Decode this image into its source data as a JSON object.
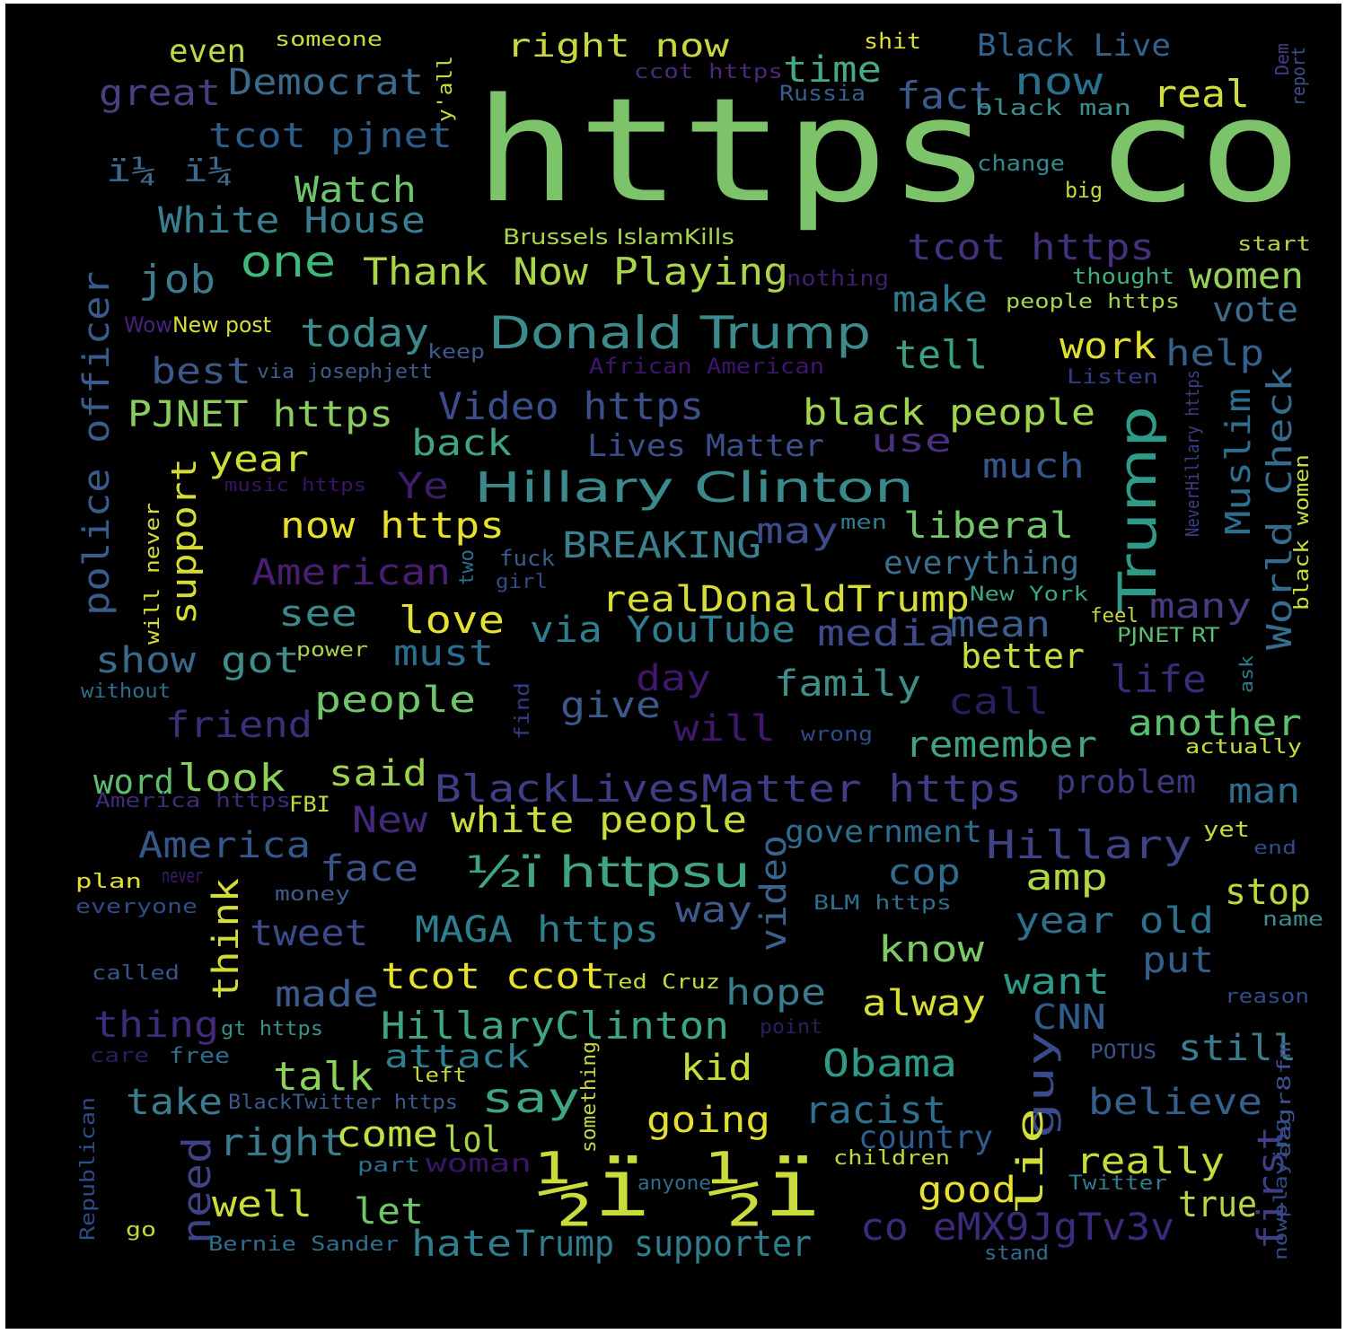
{
  "words": [
    {
      "t": "https co",
      "c": "#7cc36a"
    },
    {
      "t": "½ï ½ï",
      "c": "#c9dc3c"
    },
    {
      "t": "Donald Trump",
      "c": "#3d8a8c"
    },
    {
      "t": "Hillary Clinton",
      "c": "#3a8a8b"
    },
    {
      "t": "Trump",
      "c": "#2f9a87"
    },
    {
      "t": "½ï httpsu",
      "c": "#3fa57f"
    },
    {
      "t": "right now",
      "c": "#c8d640"
    },
    {
      "t": "Thank Now Playing",
      "c": "#aad44a"
    },
    {
      "t": "Democrat",
      "c": "#3a6a8c"
    },
    {
      "t": "great",
      "c": "#4a3d80"
    },
    {
      "t": "tcot pjnet",
      "c": "#2e5d8a"
    },
    {
      "t": "even",
      "c": "#b9da46"
    },
    {
      "t": "someone",
      "c": "#c7db40"
    },
    {
      "t": "ccot https",
      "c": "#4a2a78"
    },
    {
      "t": "time",
      "c": "#46a982"
    },
    {
      "t": "Russia",
      "c": "#35608c"
    },
    {
      "t": "fact",
      "c": "#3b5a8b"
    },
    {
      "t": "shit",
      "c": "#dadf31"
    },
    {
      "t": "Black Live",
      "c": "#32638d"
    },
    {
      "t": "now",
      "c": "#2a708e"
    },
    {
      "t": "real",
      "c": "#cfdc3a"
    },
    {
      "t": "black man",
      "c": "#3a8e8c"
    },
    {
      "t": "Dem",
      "c": "#433e85"
    },
    {
      "t": "report",
      "c": "#3b538b"
    },
    {
      "t": "y'all",
      "c": "#c8dc3c"
    },
    {
      "t": "ï¼ ï¼",
      "c": "#3e6a8e"
    },
    {
      "t": "Watch",
      "c": "#6dc56a"
    },
    {
      "t": "White House",
      "c": "#397e8e"
    },
    {
      "t": "change",
      "c": "#33888e"
    },
    {
      "t": "big",
      "c": "#c5da3d"
    },
    {
      "t": "Brussels IslamKills",
      "c": "#a6d44e"
    },
    {
      "t": "tcot https",
      "c": "#44307f"
    },
    {
      "t": "start",
      "c": "#b0d647"
    },
    {
      "t": "one",
      "c": "#3fb87a"
    },
    {
      "t": "job",
      "c": "#3d7b8c"
    },
    {
      "t": "nothing",
      "c": "#3e1f6a"
    },
    {
      "t": "thought",
      "c": "#42ae7f"
    },
    {
      "t": "women",
      "c": "#96d05a"
    },
    {
      "t": "people https",
      "c": "#a6d34a"
    },
    {
      "t": "make",
      "c": "#2f7a8d"
    },
    {
      "t": "vote",
      "c": "#3a6c8e"
    },
    {
      "t": "police officer",
      "c": "#3b5b8c"
    },
    {
      "t": "Wow",
      "c": "#48217a"
    },
    {
      "t": "New post",
      "c": "#d9de3d"
    },
    {
      "t": "today",
      "c": "#3b8a8c"
    },
    {
      "t": "keep",
      "c": "#3e5a8b"
    },
    {
      "t": "tell",
      "c": "#3a9f85"
    },
    {
      "t": "work",
      "c": "#e0df30"
    },
    {
      "t": "help",
      "c": "#35608c"
    },
    {
      "t": "best",
      "c": "#3c5889"
    },
    {
      "t": "via josephjett",
      "c": "#3f5b8c"
    },
    {
      "t": "African American",
      "c": "#40146e"
    },
    {
      "t": "Listen",
      "c": "#313c84"
    },
    {
      "t": "PJNET https",
      "c": "#8bcc5e"
    },
    {
      "t": "Video https",
      "c": "#3c4f8a"
    },
    {
      "t": "black people",
      "c": "#9fd451"
    },
    {
      "t": "NeverHillary https",
      "c": "#3b3f85"
    },
    {
      "t": "Muslim",
      "c": "#2d6e8e"
    },
    {
      "t": "World Check",
      "c": "#356b8c"
    },
    {
      "t": "black women",
      "c": "#c8dc3c"
    },
    {
      "t": "year",
      "c": "#cede36"
    },
    {
      "t": "back",
      "c": "#42a281"
    },
    {
      "t": "Lives Matter",
      "c": "#3c4f8a"
    },
    {
      "t": "use",
      "c": "#4a307e"
    },
    {
      "t": "much",
      "c": "#36568b"
    },
    {
      "t": "support",
      "c": "#d6dc34"
    },
    {
      "t": "music https",
      "c": "#3a1468"
    },
    {
      "t": "Ye",
      "c": "#3d1e6a"
    },
    {
      "t": "will never",
      "c": "#d3dd3a"
    },
    {
      "t": "now https",
      "c": "#e6df2c"
    },
    {
      "t": "BREAKING",
      "c": "#3c7f8c"
    },
    {
      "t": "may",
      "c": "#3d4c89"
    },
    {
      "t": "men",
      "c": "#2f7a8d"
    },
    {
      "t": "liberal",
      "c": "#6fc567"
    },
    {
      "t": "American",
      "c": "#4a1f73"
    },
    {
      "t": "two",
      "c": "#2d6f8e"
    },
    {
      "t": "fuck",
      "c": "#3a5b8b"
    },
    {
      "t": "girl",
      "c": "#2f4c87"
    },
    {
      "t": "everything",
      "c": "#3a6e8d"
    },
    {
      "t": "realDonaldTrump",
      "c": "#d8dd36"
    },
    {
      "t": "New York",
      "c": "#3ba583"
    },
    {
      "t": "many",
      "c": "#4a3a80"
    },
    {
      "t": "see",
      "c": "#3a8a8c"
    },
    {
      "t": "love",
      "c": "#e6e033"
    },
    {
      "t": "via YouTube",
      "c": "#2f7e8d"
    },
    {
      "t": "media",
      "c": "#3e4a8a"
    },
    {
      "t": "mean",
      "c": "#3a5d8b"
    },
    {
      "t": "feel",
      "c": "#c3d83e"
    },
    {
      "t": "PJNET RT",
      "c": "#5bbf70"
    },
    {
      "t": "show",
      "c": "#3a6b8c"
    },
    {
      "t": "got",
      "c": "#3f8d8a"
    },
    {
      "t": "power",
      "c": "#a6d34a"
    },
    {
      "t": "must",
      "c": "#2c6d8d"
    },
    {
      "t": "better",
      "c": "#c8dc40"
    },
    {
      "t": "without",
      "c": "#2d6e8e"
    },
    {
      "t": "day",
      "c": "#40176a"
    },
    {
      "t": "family",
      "c": "#3f8e8a"
    },
    {
      "t": "life",
      "c": "#3d2a78"
    },
    {
      "t": "ask",
      "c": "#2d7b8e"
    },
    {
      "t": "find",
      "c": "#313c84"
    },
    {
      "t": "friend",
      "c": "#3d2e7a"
    },
    {
      "t": "people",
      "c": "#6ec56a"
    },
    {
      "t": "give",
      "c": "#3b5a8b"
    },
    {
      "t": "will",
      "c": "#40176a"
    },
    {
      "t": "call",
      "c": "#2d1d5f"
    },
    {
      "t": "another",
      "c": "#5cbf70"
    },
    {
      "t": "wrong",
      "c": "#2f4c87"
    },
    {
      "t": "remember",
      "c": "#42a281"
    },
    {
      "t": "actually",
      "c": "#c9dc3c"
    },
    {
      "t": "word",
      "c": "#5dbd6f"
    },
    {
      "t": "look",
      "c": "#8ad05a"
    },
    {
      "t": "said",
      "c": "#9ed24e"
    },
    {
      "t": "BlackLivesMatter https",
      "c": "#3e3e86"
    },
    {
      "t": "problem",
      "c": "#3b3a7e"
    },
    {
      "t": "man",
      "c": "#2f6c8d"
    },
    {
      "t": "America https",
      "c": "#3e2b7a"
    },
    {
      "t": "FBI",
      "c": "#c4d83c"
    },
    {
      "t": "New",
      "c": "#44287c"
    },
    {
      "t": "white people",
      "c": "#c9dc3c"
    },
    {
      "t": "America",
      "c": "#35588b"
    },
    {
      "t": "video",
      "c": "#3a638c"
    },
    {
      "t": "government",
      "c": "#2c6d8d"
    },
    {
      "t": "Hillary",
      "c": "#3e4386"
    },
    {
      "t": "yet",
      "c": "#c7db3c"
    },
    {
      "t": "end",
      "c": "#2f4c87"
    },
    {
      "t": "face",
      "c": "#3b538b"
    },
    {
      "t": "cop",
      "c": "#2e6b8d"
    },
    {
      "t": "amp",
      "c": "#b0d647"
    },
    {
      "t": "stop",
      "c": "#b8d940"
    },
    {
      "t": "plan",
      "c": "#e0df30"
    },
    {
      "t": "never",
      "c": "#3b1b6a"
    },
    {
      "t": "money",
      "c": "#3a5d8b"
    },
    {
      "t": "everyone",
      "c": "#2f4c87"
    },
    {
      "t": "think",
      "c": "#d4dd38"
    },
    {
      "t": "tweet",
      "c": "#3d4a8a"
    },
    {
      "t": "MAGA https",
      "c": "#2f7e8d"
    },
    {
      "t": "way",
      "c": "#3e5a8b"
    },
    {
      "t": "BLM https",
      "c": "#2f6f8e"
    },
    {
      "t": "year old",
      "c": "#2f6f8e"
    },
    {
      "t": "name",
      "c": "#3f8c8a"
    },
    {
      "t": "know",
      "c": "#7cc965"
    },
    {
      "t": "put",
      "c": "#35608c"
    },
    {
      "t": "called",
      "c": "#36568b"
    },
    {
      "t": "made",
      "c": "#3d5a8b"
    },
    {
      "t": "tcot ccot",
      "c": "#e6df2c"
    },
    {
      "t": "Ted Cruz",
      "c": "#c4d83c"
    },
    {
      "t": "hope",
      "c": "#3a7c8d"
    },
    {
      "t": "alway",
      "c": "#d8dd36"
    },
    {
      "t": "want",
      "c": "#2f9a87"
    },
    {
      "t": "reason",
      "c": "#2f4c87"
    },
    {
      "t": "thing",
      "c": "#3f2b7a"
    },
    {
      "t": "gt https",
      "c": "#3a8e8c"
    },
    {
      "t": "point",
      "c": "#2d1d5f"
    },
    {
      "t": "HillaryClinton",
      "c": "#3fa57f"
    },
    {
      "t": "CNN",
      "c": "#2f5c8d"
    },
    {
      "t": "care",
      "c": "#2d1d5f"
    },
    {
      "t": "free",
      "c": "#2f6c8d"
    },
    {
      "t": "attack",
      "c": "#2f7e8d"
    },
    {
      "t": "left",
      "c": "#c8d640"
    },
    {
      "t": "talk",
      "c": "#8ad05a"
    },
    {
      "t": "kid",
      "c": "#c9dc3c"
    },
    {
      "t": "Obama",
      "c": "#2f9a87"
    },
    {
      "t": "POTUS",
      "c": "#3b538b"
    },
    {
      "t": "still",
      "c": "#3a7c8d"
    },
    {
      "t": "something",
      "c": "#c8d640"
    },
    {
      "t": "guy",
      "c": "#3b4a8a"
    },
    {
      "t": "take",
      "c": "#3a7c8d"
    },
    {
      "t": "BlackTwitter https",
      "c": "#3b5a8b"
    },
    {
      "t": "say",
      "c": "#3fa57f"
    },
    {
      "t": "believe",
      "c": "#35608c"
    },
    {
      "t": "dagr8fm",
      "c": "#3b538b"
    },
    {
      "t": "Republican",
      "c": "#2f4c87"
    },
    {
      "t": "need",
      "c": "#3e4386"
    },
    {
      "t": "right",
      "c": "#3a7c8d"
    },
    {
      "t": "come",
      "c": "#bde044"
    },
    {
      "t": "lol",
      "c": "#a6d34a"
    },
    {
      "t": "going",
      "c": "#e3df30"
    },
    {
      "t": "racist",
      "c": "#2f6f8e"
    },
    {
      "t": "lie",
      "c": "#d3dd3a"
    },
    {
      "t": "country",
      "c": "#2d5c8d"
    },
    {
      "t": "children",
      "c": "#c4d83c"
    },
    {
      "t": "woman",
      "c": "#3a1468"
    },
    {
      "t": "part",
      "c": "#2d6e8e"
    },
    {
      "t": "really",
      "c": "#c5da3d"
    },
    {
      "t": "first",
      "c": "#3e3e86"
    },
    {
      "t": "nowplaying",
      "c": "#2f4c87"
    },
    {
      "t": "Twitter",
      "c": "#2f7a8d"
    },
    {
      "t": "good",
      "c": "#e6df2c"
    },
    {
      "t": "anyone",
      "c": "#2f6c8d"
    },
    {
      "t": "well",
      "c": "#c9dc3c"
    },
    {
      "t": "let",
      "c": "#6fc567"
    },
    {
      "t": "true",
      "c": "#b6d847"
    },
    {
      "t": "co eMX9JgTv3v",
      "c": "#3e2a7c"
    },
    {
      "t": "go",
      "c": "#c4d83c"
    },
    {
      "t": "Bernie Sander",
      "c": "#2f6f8e"
    },
    {
      "t": "hate",
      "c": "#2f7e8d"
    },
    {
      "t": "Trump supporter",
      "c": "#2f7e8d"
    },
    {
      "t": "stand",
      "c": "#2f6c8d"
    }
  ]
}
